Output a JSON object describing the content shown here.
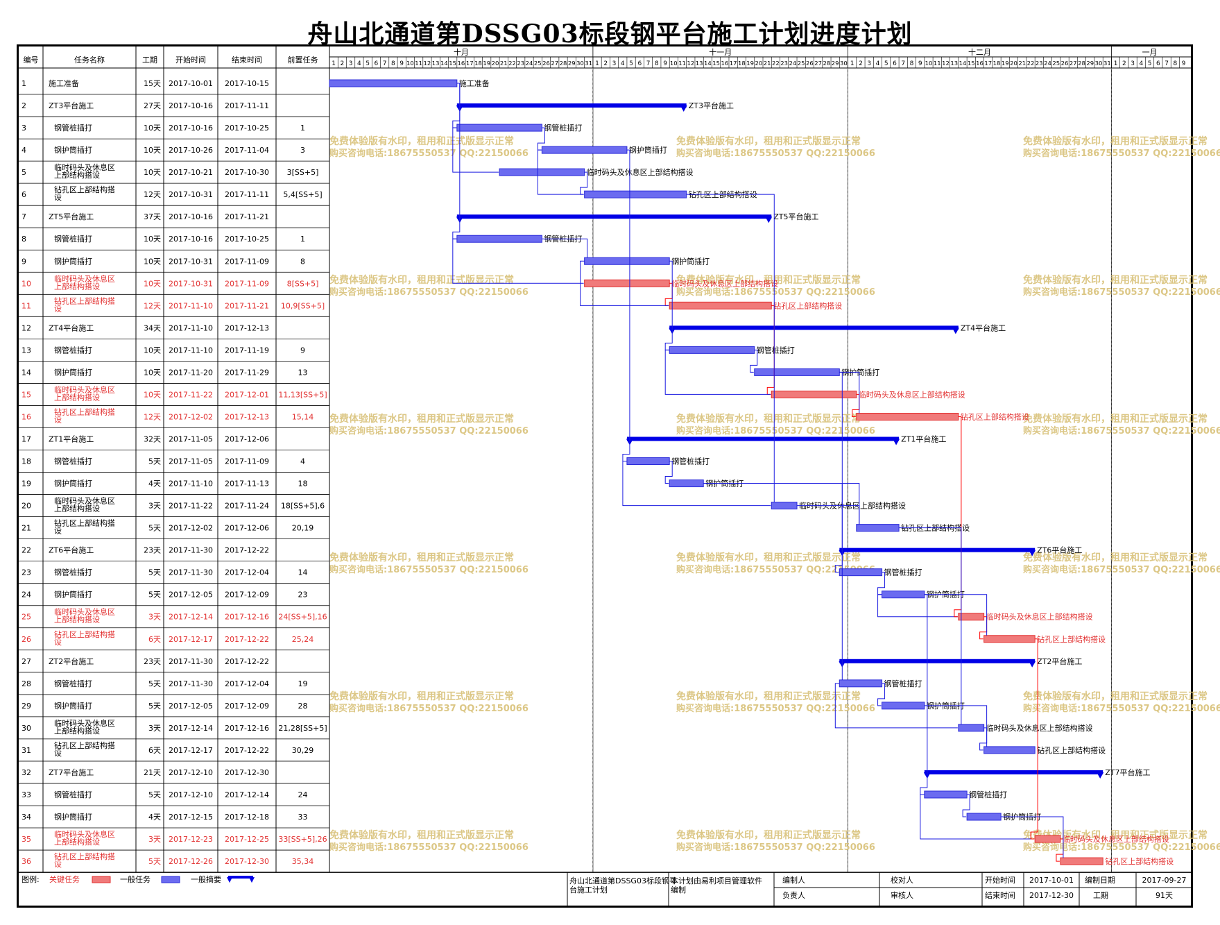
{
  "title": "舟山北通道第DSSG03标段钢平台施工计划进度计划",
  "columns": [
    "编号",
    "任务名称",
    "工期",
    "开始时间",
    "结束时间",
    "前置任务"
  ],
  "months": [
    {
      "label": "十月",
      "days": 31
    },
    {
      "label": "十一月",
      "days": 30
    },
    {
      "label": "十二月",
      "days": 31
    },
    {
      "label": "一月",
      "days": 9
    }
  ],
  "watermark": {
    "line1": "免费体验版有水印，租用和正式版显示正常",
    "line2": "购买咨询电话:18675550537 QQ:22150066"
  },
  "tasks": [
    {
      "id": "1",
      "name": "施工准备",
      "duration": "15天",
      "start": "2017-10-01",
      "end": "2017-10-15",
      "pred": "",
      "type": "normal",
      "indent": 0,
      "bar": "施工准备",
      "s": 1,
      "e": 15
    },
    {
      "id": "2",
      "name": "ZT3平台施工",
      "duration": "27天",
      "start": "2017-10-16",
      "end": "2017-11-11",
      "pred": "",
      "type": "summary",
      "indent": 0,
      "bar": "ZT3平台施工",
      "s": 16,
      "e": 42
    },
    {
      "id": "3",
      "name": "钢管桩插打",
      "duration": "10天",
      "start": "2017-10-16",
      "end": "2017-10-25",
      "pred": "1",
      "type": "normal",
      "indent": 1,
      "bar": "钢管桩插打",
      "s": 16,
      "e": 25
    },
    {
      "id": "4",
      "name": "钢护筒插打",
      "duration": "10天",
      "start": "2017-10-26",
      "end": "2017-11-04",
      "pred": "3",
      "type": "normal",
      "indent": 1,
      "bar": "钢护筒插打",
      "s": 26,
      "e": 35
    },
    {
      "id": "5",
      "name": "临时码头及休息区上部结构搭设",
      "duration": "10天",
      "start": "2017-10-21",
      "end": "2017-10-30",
      "pred": "3[SS+5]",
      "type": "normal",
      "indent": 1,
      "bar": "临时码头及休息区上部结构搭设",
      "s": 21,
      "e": 30
    },
    {
      "id": "6",
      "name": "钻孔区上部结构搭设",
      "duration": "12天",
      "start": "2017-10-31",
      "end": "2017-11-11",
      "pred": "5,4[SS+5]",
      "type": "normal",
      "indent": 1,
      "bar": "钻孔区上部结构搭设",
      "s": 31,
      "e": 42
    },
    {
      "id": "7",
      "name": "ZT5平台施工",
      "duration": "37天",
      "start": "2017-10-16",
      "end": "2017-11-21",
      "pred": "",
      "type": "summary",
      "indent": 0,
      "bar": "ZT5平台施工",
      "s": 16,
      "e": 52
    },
    {
      "id": "8",
      "name": "钢管桩插打",
      "duration": "10天",
      "start": "2017-10-16",
      "end": "2017-10-25",
      "pred": "1",
      "type": "normal",
      "indent": 1,
      "bar": "钢管桩插打",
      "s": 16,
      "e": 25
    },
    {
      "id": "9",
      "name": "钢护筒插打",
      "duration": "10天",
      "start": "2017-10-31",
      "end": "2017-11-09",
      "pred": "8",
      "type": "normal",
      "indent": 1,
      "bar": "钢护筒插打",
      "s": 31,
      "e": 40
    },
    {
      "id": "10",
      "name": "临时码头及休息区上部结构搭设",
      "duration": "10天",
      "start": "2017-10-31",
      "end": "2017-11-09",
      "pred": "8[SS+5]",
      "type": "critical",
      "indent": 1,
      "bar": "临时码头及休息区上部结构搭设",
      "s": 31,
      "e": 40
    },
    {
      "id": "11",
      "name": "钻孔区上部结构搭设",
      "duration": "12天",
      "start": "2017-11-10",
      "end": "2017-11-21",
      "pred": "10,9[SS+5]",
      "type": "critical",
      "indent": 1,
      "bar": "钻孔区上部结构搭设",
      "s": 41,
      "e": 52
    },
    {
      "id": "12",
      "name": "ZT4平台施工",
      "duration": "34天",
      "start": "2017-11-10",
      "end": "2017-12-13",
      "pred": "",
      "type": "summary",
      "indent": 0,
      "bar": "ZT4平台施工",
      "s": 41,
      "e": 74
    },
    {
      "id": "13",
      "name": "钢管桩插打",
      "duration": "10天",
      "start": "2017-11-10",
      "end": "2017-11-19",
      "pred": "9",
      "type": "normal",
      "indent": 1,
      "bar": "钢管桩插打",
      "s": 41,
      "e": 50
    },
    {
      "id": "14",
      "name": "钢护筒插打",
      "duration": "10天",
      "start": "2017-11-20",
      "end": "2017-11-29",
      "pred": "13",
      "type": "normal",
      "indent": 1,
      "bar": "钢护筒插打",
      "s": 51,
      "e": 60
    },
    {
      "id": "15",
      "name": "临时码头及休息区上部结构搭设",
      "duration": "10天",
      "start": "2017-11-22",
      "end": "2017-12-01",
      "pred": "11,13[SS+5]",
      "type": "critical",
      "indent": 1,
      "bar": "临时码头及休息区上部结构搭设",
      "s": 53,
      "e": 62
    },
    {
      "id": "16",
      "name": "钻孔区上部结构搭设",
      "duration": "12天",
      "start": "2017-12-02",
      "end": "2017-12-13",
      "pred": "15,14",
      "type": "critical",
      "indent": 1,
      "bar": "钻孔区上部结构搭设",
      "s": 63,
      "e": 74
    },
    {
      "id": "17",
      "name": "ZT1平台施工",
      "duration": "32天",
      "start": "2017-11-05",
      "end": "2017-12-06",
      "pred": "",
      "type": "summary",
      "indent": 0,
      "bar": "ZT1平台施工",
      "s": 36,
      "e": 67
    },
    {
      "id": "18",
      "name": "钢管桩插打",
      "duration": "5天",
      "start": "2017-11-05",
      "end": "2017-11-09",
      "pred": "4",
      "type": "normal",
      "indent": 1,
      "bar": "钢管桩插打",
      "s": 36,
      "e": 40
    },
    {
      "id": "19",
      "name": "钢护筒插打",
      "duration": "4天",
      "start": "2017-11-10",
      "end": "2017-11-13",
      "pred": "18",
      "type": "normal",
      "indent": 1,
      "bar": "钢护筒插打",
      "s": 41,
      "e": 44
    },
    {
      "id": "20",
      "name": "临时码头及休息区上部结构搭设",
      "duration": "3天",
      "start": "2017-11-22",
      "end": "2017-11-24",
      "pred": "18[SS+5],6",
      "type": "normal",
      "indent": 1,
      "bar": "临时码头及休息区上部结构搭设",
      "s": 53,
      "e": 55
    },
    {
      "id": "21",
      "name": "钻孔区上部结构搭设",
      "duration": "5天",
      "start": "2017-12-02",
      "end": "2017-12-06",
      "pred": "20,19",
      "type": "normal",
      "indent": 1,
      "bar": "钻孔区上部结构搭设",
      "s": 63,
      "e": 67
    },
    {
      "id": "22",
      "name": "ZT6平台施工",
      "duration": "23天",
      "start": "2017-11-30",
      "end": "2017-12-22",
      "pred": "",
      "type": "summary",
      "indent": 0,
      "bar": "ZT6平台施工",
      "s": 61,
      "e": 83
    },
    {
      "id": "23",
      "name": "钢管桩插打",
      "duration": "5天",
      "start": "2017-11-30",
      "end": "2017-12-04",
      "pred": "14",
      "type": "normal",
      "indent": 1,
      "bar": "钢管桩插打",
      "s": 61,
      "e": 65
    },
    {
      "id": "24",
      "name": "钢护筒插打",
      "duration": "5天",
      "start": "2017-12-05",
      "end": "2017-12-09",
      "pred": "23",
      "type": "normal",
      "indent": 1,
      "bar": "钢护筒插打",
      "s": 66,
      "e": 70
    },
    {
      "id": "25",
      "name": "临时码头及休息区上部结构搭设",
      "duration": "3天",
      "start": "2017-12-14",
      "end": "2017-12-16",
      "pred": "24[SS+5],16",
      "type": "critical",
      "indent": 1,
      "bar": "临时码头及休息区上部结构搭设",
      "s": 75,
      "e": 77
    },
    {
      "id": "26",
      "name": "钻孔区上部结构搭设",
      "duration": "6天",
      "start": "2017-12-17",
      "end": "2017-12-22",
      "pred": "25,24",
      "type": "critical",
      "indent": 1,
      "bar": "钻孔区上部结构搭设",
      "s": 78,
      "e": 83
    },
    {
      "id": "27",
      "name": "ZT2平台施工",
      "duration": "23天",
      "start": "2017-11-30",
      "end": "2017-12-22",
      "pred": "",
      "type": "summary",
      "indent": 0,
      "bar": "ZT2平台施工",
      "s": 61,
      "e": 83
    },
    {
      "id": "28",
      "name": "钢管桩插打",
      "duration": "5天",
      "start": "2017-11-30",
      "end": "2017-12-04",
      "pred": "19",
      "type": "normal",
      "indent": 1,
      "bar": "钢管桩插打",
      "s": 61,
      "e": 65
    },
    {
      "id": "29",
      "name": "钢护筒插打",
      "duration": "5天",
      "start": "2017-12-05",
      "end": "2017-12-09",
      "pred": "28",
      "type": "normal",
      "indent": 1,
      "bar": "钢护筒插打",
      "s": 66,
      "e": 70
    },
    {
      "id": "30",
      "name": "临时码头及休息区上部结构搭设",
      "duration": "3天",
      "start": "2017-12-14",
      "end": "2017-12-16",
      "pred": "21,28[SS+5]",
      "type": "normal",
      "indent": 1,
      "bar": "临时码头及休息区上部结构搭设",
      "s": 75,
      "e": 77
    },
    {
      "id": "31",
      "name": "钻孔区上部结构搭设",
      "duration": "6天",
      "start": "2017-12-17",
      "end": "2017-12-22",
      "pred": "30,29",
      "type": "normal",
      "indent": 1,
      "bar": "钻孔区上部结构搭设",
      "s": 78,
      "e": 83
    },
    {
      "id": "32",
      "name": "ZT7平台施工",
      "duration": "21天",
      "start": "2017-12-10",
      "end": "2017-12-30",
      "pred": "",
      "type": "summary",
      "indent": 0,
      "bar": "ZT7平台施工",
      "s": 71,
      "e": 91
    },
    {
      "id": "33",
      "name": "钢管桩插打",
      "duration": "5天",
      "start": "2017-12-10",
      "end": "2017-12-14",
      "pred": "24",
      "type": "normal",
      "indent": 1,
      "bar": "钢管桩插打",
      "s": 71,
      "e": 75
    },
    {
      "id": "34",
      "name": "钢护筒插打",
      "duration": "4天",
      "start": "2017-12-15",
      "end": "2017-12-18",
      "pred": "33",
      "type": "normal",
      "indent": 1,
      "bar": "钢护筒插打",
      "s": 76,
      "e": 79
    },
    {
      "id": "35",
      "name": "临时码头及休息区上部结构搭设",
      "duration": "3天",
      "start": "2017-12-23",
      "end": "2017-12-25",
      "pred": "33[SS+5],26",
      "type": "critical",
      "indent": 1,
      "bar": "临时码头及休息区上部结构搭设",
      "s": 84,
      "e": 86
    },
    {
      "id": "36",
      "name": "钻孔区上部结构搭设",
      "duration": "5天",
      "start": "2017-12-26",
      "end": "2017-12-30",
      "pred": "35,34",
      "type": "critical",
      "indent": 1,
      "bar": "钻孔区上部结构搭设",
      "s": 87,
      "e": 91
    }
  ],
  "legend": {
    "label": "图例:",
    "critical": "关键任务",
    "normal": "一般任务",
    "summary": "一般摘要"
  },
  "footer": {
    "plan_name": "舟山北通道第DSSG03标段钢平台施工计划",
    "software": "本计划由易利项目管理软件编制",
    "compiler_label": "编制人",
    "reviewer_label": "校对人",
    "owner_label": "负责人",
    "approver_label": "审核人",
    "start_label": "开始时间",
    "start_value": "2017-10-01",
    "end_label": "结束时间",
    "end_value": "2017-12-30",
    "date_label": "编制日期",
    "date_value": "2017-09-27",
    "duration_label": "工期",
    "duration_value": "91天"
  },
  "colors": {
    "normal": "#2b2bd9",
    "normal_fill": "#6b6bf0",
    "summary": "#0000e6",
    "critical": "#e23030",
    "critical_fill": "#f07a7a",
    "link": "#1a1ae0",
    "link_critical": "#ff0000",
    "watermark": "#d9c27a"
  }
}
